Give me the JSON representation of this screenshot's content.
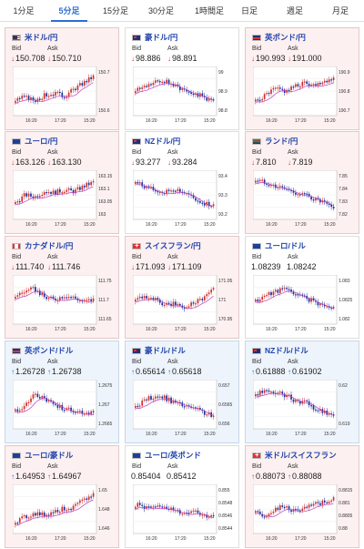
{
  "tabs": [
    {
      "label": "1分足",
      "active": false
    },
    {
      "label": "5分足",
      "active": true
    },
    {
      "label": "15分足",
      "active": false
    },
    {
      "label": "30分足",
      "active": false
    },
    {
      "label": "1時間足",
      "active": false
    },
    {
      "label": "日足",
      "active": false
    },
    {
      "label": "週足",
      "active": false
    },
    {
      "label": "月足",
      "active": false
    }
  ],
  "labels": {
    "bid": "Bid",
    "ask": "Ask"
  },
  "colors": {
    "up_candle": "#d03030",
    "down_candle": "#1a2f9a",
    "ma_line": "#c040c0",
    "arrow_down": "#d03030",
    "arrow_up": "#1e70c8",
    "title": "#2244aa"
  },
  "cards": [
    {
      "name": "米ドル/円",
      "flag": "us",
      "bid": "150.708",
      "ask": "150.710",
      "dir": "down",
      "bg": "pink",
      "y_ticks": [
        "150.7",
        "150.6"
      ],
      "x_ticks": [
        "16:20",
        "17:20",
        "15:20"
      ],
      "trend": [
        0.3,
        0.35,
        0.28,
        0.4,
        0.45,
        0.38,
        0.55,
        0.7,
        0.85
      ]
    },
    {
      "name": "豪ドル/円",
      "flag": "au",
      "bid": "98.886",
      "ask": "98.891",
      "dir": "down",
      "bg": "white",
      "y_ticks": [
        "99",
        "98.9",
        "98.8"
      ],
      "x_ticks": [
        "16:20",
        "17:20",
        "15:20"
      ],
      "trend": [
        0.55,
        0.6,
        0.7,
        0.75,
        0.62,
        0.55,
        0.45,
        0.35,
        0.25
      ]
    },
    {
      "name": "英ポンド/円",
      "flag": "gb",
      "bid": "190.993",
      "ask": "191.000",
      "dir": "down",
      "bg": "pink",
      "y_ticks": [
        "190.9",
        "190.8",
        "190.7"
      ],
      "x_ticks": [
        "16:20",
        "17:20",
        "15:20"
      ],
      "trend": [
        0.25,
        0.4,
        0.55,
        0.5,
        0.6,
        0.7,
        0.65,
        0.75,
        0.8
      ]
    },
    {
      "name": "ユーロ/円",
      "flag": "eu",
      "bid": "163.126",
      "ask": "163.130",
      "dir": "down",
      "bg": "pink",
      "y_ticks": [
        "163.15",
        "163.1",
        "163.05",
        "163"
      ],
      "x_ticks": [
        "16:20",
        "17:20",
        "15:20"
      ],
      "trend": [
        0.3,
        0.5,
        0.45,
        0.6,
        0.55,
        0.62,
        0.58,
        0.7,
        0.8
      ]
    },
    {
      "name": "NZドル/円",
      "flag": "nz",
      "bid": "93.277",
      "ask": "93.284",
      "dir": "down",
      "bg": "white",
      "y_ticks": [
        "93.4",
        "93.3",
        "93.2"
      ],
      "x_ticks": [
        "16:20",
        "17:20",
        "15:20"
      ],
      "trend": [
        0.8,
        0.7,
        0.6,
        0.55,
        0.65,
        0.55,
        0.4,
        0.3,
        0.25
      ]
    },
    {
      "name": "ランド/円",
      "flag": "za",
      "bid": "7.810",
      "ask": "7.819",
      "dir": "down",
      "bg": "pink",
      "y_ticks": [
        "7.85",
        "7.84",
        "7.83",
        "7.82"
      ],
      "x_ticks": [
        "16:20",
        "17:20",
        "15:20"
      ],
      "trend": [
        0.85,
        0.8,
        0.7,
        0.65,
        0.55,
        0.5,
        0.4,
        0.3,
        0.15
      ]
    },
    {
      "name": "カナダドル/円",
      "flag": "ca",
      "bid": "111.740",
      "ask": "111.746",
      "dir": "down",
      "bg": "pink",
      "y_ticks": [
        "111.75",
        "111.7",
        "111.65"
      ],
      "x_ticks": [
        "16:20",
        "17:20",
        "15:20"
      ],
      "trend": [
        0.6,
        0.7,
        0.75,
        0.55,
        0.5,
        0.6,
        0.55,
        0.45,
        0.5
      ]
    },
    {
      "name": "スイスフラン/円",
      "flag": "ch",
      "bid": "171.093",
      "ask": "171.109",
      "dir": "down",
      "bg": "pink",
      "y_ticks": [
        "171.05",
        "171",
        "170.95"
      ],
      "x_ticks": [
        "16:20",
        "17:20",
        "15:20"
      ],
      "trend": [
        0.55,
        0.6,
        0.5,
        0.35,
        0.4,
        0.3,
        0.45,
        0.55,
        0.75
      ]
    },
    {
      "name": "ユーロ/ドル",
      "flag": "eu",
      "bid": "1.08239",
      "ask": "1.08242",
      "dir": "none",
      "bg": "white",
      "y_ticks": [
        "1.083",
        "1.0825",
        "1.082"
      ],
      "x_ticks": [
        "16:20",
        "17:20",
        "15:20"
      ],
      "trend": [
        0.45,
        0.6,
        0.7,
        0.75,
        0.65,
        0.55,
        0.45,
        0.35,
        0.3
      ]
    },
    {
      "name": "英ポンド/ドル",
      "flag": "gb",
      "bid": "1.26728",
      "ask": "1.26738",
      "dir": "up",
      "bg": "blue",
      "y_ticks": [
        "1.2675",
        "1.267",
        "1.2665"
      ],
      "x_ticks": [
        "16:20",
        "17:20",
        "15:20"
      ],
      "trend": [
        0.35,
        0.45,
        0.75,
        0.6,
        0.5,
        0.4,
        0.35,
        0.3,
        0.3
      ]
    },
    {
      "name": "豪ドル/ドル",
      "flag": "au",
      "bid": "0.65614",
      "ask": "0.65618",
      "dir": "up",
      "bg": "blue",
      "y_ticks": [
        "0.657",
        "0.6565",
        "0.656"
      ],
      "x_ticks": [
        "16:20",
        "17:20",
        "15:20"
      ],
      "trend": [
        0.45,
        0.6,
        0.7,
        0.65,
        0.55,
        0.45,
        0.4,
        0.3,
        0.2
      ]
    },
    {
      "name": "NZドル/ドル",
      "flag": "nz",
      "bid": "0.61888",
      "ask": "0.61902",
      "dir": "up",
      "bg": "blue",
      "y_ticks": [
        "0.62",
        "0.619"
      ],
      "x_ticks": [
        "16:20",
        "17:20",
        "15:20"
      ],
      "trend": [
        0.75,
        0.8,
        0.78,
        0.72,
        0.6,
        0.55,
        0.4,
        0.3,
        0.2
      ]
    },
    {
      "name": "ユーロ/豪ドル",
      "flag": "eu",
      "bid": "1.64953",
      "ask": "1.64967",
      "dir": "up",
      "bg": "pink",
      "y_ticks": [
        "1.65",
        "1.648",
        "1.646"
      ],
      "x_ticks": [
        "16:20",
        "17:20",
        "15:20"
      ],
      "trend": [
        0.2,
        0.3,
        0.4,
        0.35,
        0.45,
        0.5,
        0.55,
        0.7,
        0.85
      ]
    },
    {
      "name": "ユーロ/英ポンド",
      "flag": "eu",
      "bid": "0.85404",
      "ask": "0.85412",
      "dir": "none",
      "bg": "white",
      "y_ticks": [
        "0.855",
        "0.8548",
        "0.8546",
        "0.8544"
      ],
      "x_ticks": [
        "16:20",
        "17:20",
        "15:20"
      ],
      "trend": [
        0.6,
        0.55,
        0.5,
        0.58,
        0.45,
        0.4,
        0.5,
        0.35,
        0.3
      ]
    },
    {
      "name": "米ドル/スイスフラン",
      "flag": "ch",
      "bid": "0.88073",
      "ask": "0.88088",
      "dir": "up",
      "bg": "pink",
      "y_ticks": [
        "0.8815",
        "0.881",
        "0.8805",
        "0.88"
      ],
      "x_ticks": [
        "16:20",
        "17:20",
        "15:20"
      ],
      "trend": [
        0.4,
        0.35,
        0.5,
        0.55,
        0.45,
        0.5,
        0.6,
        0.65,
        0.75
      ]
    }
  ]
}
